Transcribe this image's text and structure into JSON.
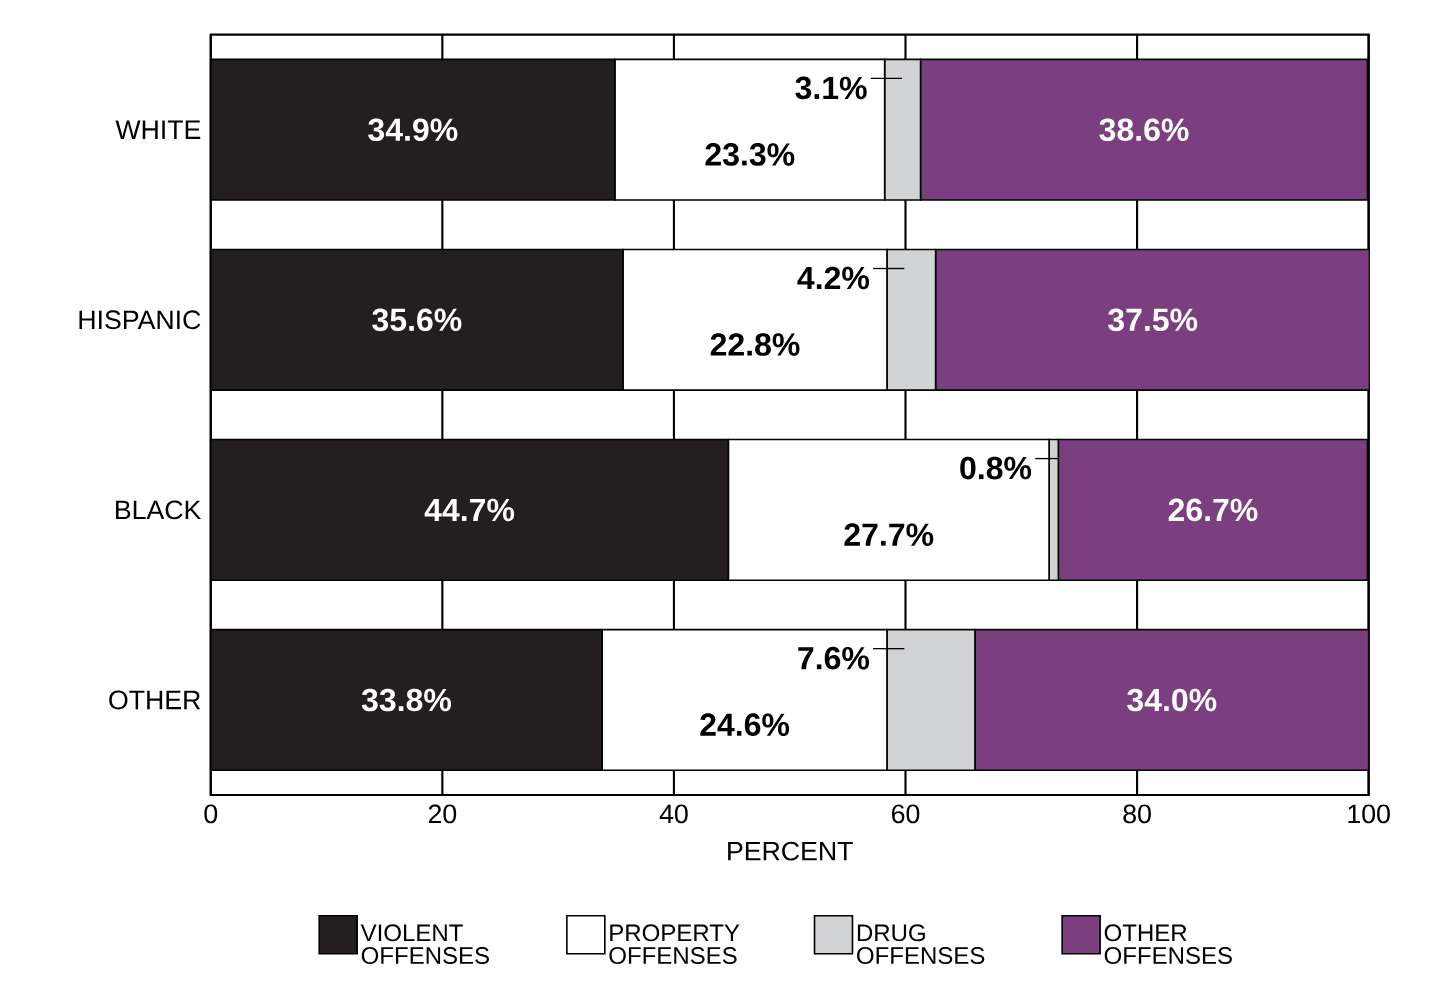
{
  "chart_data": {
    "type": "bar",
    "orientation": "horizontal",
    "stacked": true,
    "categories": [
      "WHITE",
      "HISPANIC",
      "BLACK",
      "OTHER"
    ],
    "series": [
      {
        "name": "VIOLENT OFFENSES",
        "color": "#231f20",
        "values": [
          34.9,
          35.6,
          44.7,
          33.8
        ],
        "value_labels": [
          "34.9%",
          "35.6%",
          "44.7%",
          "33.8%"
        ]
      },
      {
        "name": "PROPERTY OFFENSES",
        "color": "#ffffff",
        "values": [
          23.3,
          22.8,
          27.7,
          24.6
        ],
        "value_labels": [
          "23.3%",
          "22.8%",
          "27.7%",
          "24.6%"
        ]
      },
      {
        "name": "DRUG OFFENSES",
        "color": "#d1d3d4",
        "values": [
          3.1,
          4.2,
          0.8,
          7.6
        ],
        "value_labels": [
          "3.1%",
          "4.2%",
          "0.8%",
          "7.6%"
        ]
      },
      {
        "name": "OTHER OFFENSES",
        "color": "#7b3f7f",
        "values": [
          38.6,
          37.5,
          26.7,
          34.0
        ],
        "value_labels": [
          "38.6%",
          "37.5%",
          "26.7%",
          "34.0%"
        ]
      }
    ],
    "xlim": [
      0,
      100
    ],
    "xticks": [
      0,
      20,
      40,
      60,
      80,
      100
    ],
    "xlabel": "PERCENT",
    "grid": "x",
    "legend": "bottom"
  }
}
